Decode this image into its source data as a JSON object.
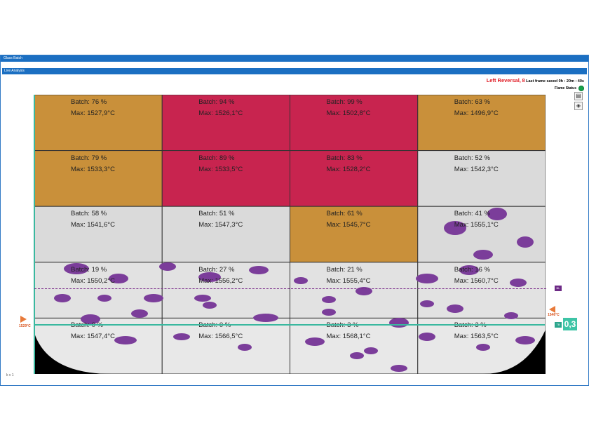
{
  "window": {
    "title": "Glass Batch"
  },
  "tab": {
    "label": "Live Analysis"
  },
  "status": {
    "reversal": "Left Reversal,",
    "reversal_count": "8",
    "last_frame": "Last frame saved 0h : 20m : 40s"
  },
  "flame": {
    "label": "Flame Status",
    "color": "#16a34a"
  },
  "tools": {
    "icon1": "chart-icon",
    "icon2": "palette-icon"
  },
  "lines": {
    "bl_label": "BL",
    "tb_label": "TB",
    "ratio": "0,3"
  },
  "temps": {
    "left": "1529°C",
    "right": "1546°C"
  },
  "footer": {
    "text": "k   v   1"
  },
  "grid": [
    [
      {
        "batch": "Batch: 76 %",
        "max": "Max: 1527,9°C",
        "color": "#c9903a"
      },
      {
        "batch": "Batch: 94 %",
        "max": "Max: 1526,1°C",
        "color": "#c8244f"
      },
      {
        "batch": "Batch: 99 %",
        "max": "Max: 1502,8°C",
        "color": "#c8244f"
      },
      {
        "batch": "Batch: 63 %",
        "max": "Max: 1496,9°C",
        "color": "#c9903a"
      }
    ],
    [
      {
        "batch": "Batch: 79 %",
        "max": "Max: 1533,3°C",
        "color": "#c9903a"
      },
      {
        "batch": "Batch: 89 %",
        "max": "Max: 1533,5°C",
        "color": "#c8244f"
      },
      {
        "batch": "Batch: 83 %",
        "max": "Max: 1528,2°C",
        "color": "#c8244f"
      },
      {
        "batch": "Batch: 52 %",
        "max": "Max: 1542,3°C",
        "color": "#dadada"
      }
    ],
    [
      {
        "batch": "Batch: 58 %",
        "max": "Max: 1541,6°C",
        "color": "#dadada"
      },
      {
        "batch": "Batch: 51 %",
        "max": "Max: 1547,3°C",
        "color": "#dadada"
      },
      {
        "batch": "Batch: 61 %",
        "max": "Max: 1545,7°C",
        "color": "#c9903a"
      },
      {
        "batch": "Batch: 41 %",
        "max": "Max: 1555,1°C",
        "color": "#dadada"
      }
    ],
    [
      {
        "batch": "Batch: 19 %",
        "max": "Max: 1550,2°C",
        "color": "#e2e2e2"
      },
      {
        "batch": "Batch: 27 %",
        "max": "Max: 1556,2°C",
        "color": "#e2e2e2"
      },
      {
        "batch": "Batch: 21 %",
        "max": "Max: 1555,4°C",
        "color": "#e2e2e2"
      },
      {
        "batch": "Batch: 16 %",
        "max": "Max: 1560,7°C",
        "color": "#e2e2e2"
      }
    ],
    [
      {
        "batch": "Batch: 0 %",
        "max": "Max: 1547,4°C",
        "color": "#e8e8e8"
      },
      {
        "batch": "Batch: 0 %",
        "max": "Max: 1566,5°C",
        "color": "#e8e8e8"
      },
      {
        "batch": "Batch: 3 %",
        "max": "Max: 1568,1°C",
        "color": "#e8e8e8"
      },
      {
        "batch": "Batch: 3 %",
        "max": "Max: 1563,5°C",
        "color": "#e8e8e8"
      }
    ]
  ]
}
